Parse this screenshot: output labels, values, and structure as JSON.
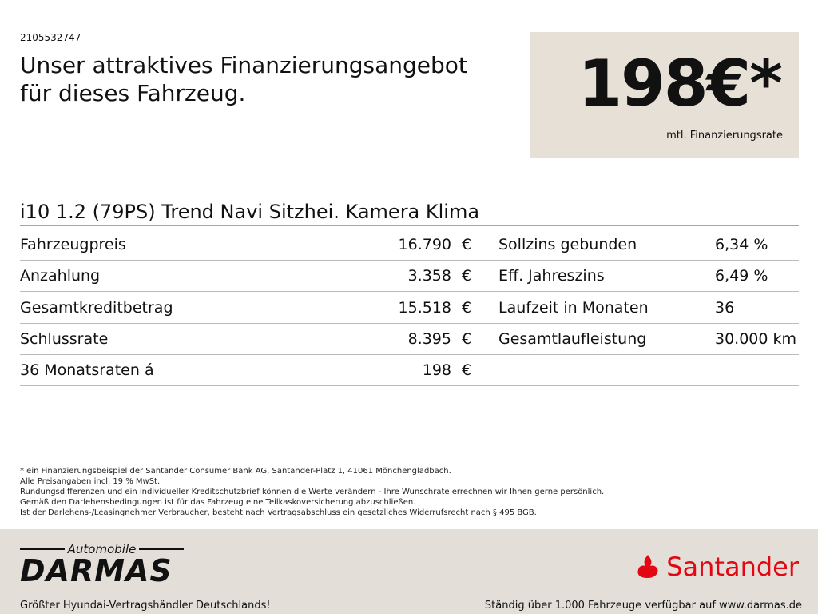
{
  "id": "2105532747",
  "headline": [
    "Unser attraktives Finanzierungsangebot",
    "für dieses Fahrzeug."
  ],
  "price": {
    "value": "198€*",
    "label": "mtl. Finanzierungsrate"
  },
  "vehicle_title": "i10 1.2 (79PS) Trend Navi Sitzhei. Kamera Klima",
  "rows": [
    {
      "label": "Fahrzeugpreis",
      "value": "16.790",
      "unit": "€",
      "label2": "Sollzins gebunden",
      "value2": "6,34 %"
    },
    {
      "label": "Anzahlung",
      "value": "3.358",
      "unit": "€",
      "label2": "Eff. Jahreszins",
      "value2": "6,49 %"
    },
    {
      "label": "Gesamtkreditbetrag",
      "value": "15.518",
      "unit": "€",
      "label2": "Laufzeit in Monaten",
      "value2": "36"
    },
    {
      "label": "Schlussrate",
      "value": "8.395",
      "unit": "€",
      "label2": "Gesamtlaufleistung",
      "value2": "30.000 km"
    },
    {
      "label": "36 Monatsraten á",
      "value": "198",
      "unit": "€",
      "label2": "",
      "value2": ""
    }
  ],
  "footnotes": [
    "* ein Finanzierungsbeispiel der Santander Consumer Bank AG, Santander-Platz 1, 41061 Mönchengladbach.",
    "Alle Preisangaben incl. 19 % MwSt.",
    "Rundungsdifferenzen und ein individueller Kreditschutzbrief können die Werte verändern - Ihre Wunschrate errechnen wir Ihnen gerne persönlich.",
    "Gemäß den Darlehensbedingungen ist für das Fahrzeug eine Teilkaskoversicherung abzuschließen.",
    "Ist der Darlehens-/Leasingnehmer Verbraucher, besteht nach Vertragsabschluss ein gesetzliches Widerrufsrecht nach § 495 BGB."
  ],
  "footer": {
    "logo_top": "Automobile",
    "logo_main": "DARMAS",
    "santander": "Santander",
    "santander_color": "#e30613",
    "left_tagline": "Größter Hyundai-Vertragshändler Deutschlands!",
    "right_tagline": "Ständig über 1.000 Fahrzeuge verfügbar auf www.darmas.de"
  }
}
